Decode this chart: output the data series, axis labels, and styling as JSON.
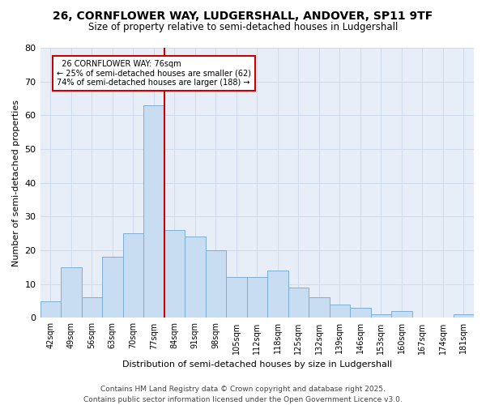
{
  "title": "26, CORNFLOWER WAY, LUDGERSHALL, ANDOVER, SP11 9TF",
  "subtitle": "Size of property relative to semi-detached houses in Ludgershall",
  "xlabel": "Distribution of semi-detached houses by size in Ludgershall",
  "ylabel": "Number of semi-detached properties",
  "categories": [
    "42sqm",
    "49sqm",
    "56sqm",
    "63sqm",
    "70sqm",
    "77sqm",
    "84sqm",
    "91sqm",
    "98sqm",
    "105sqm",
    "112sqm",
    "118sqm",
    "125sqm",
    "132sqm",
    "139sqm",
    "146sqm",
    "153sqm",
    "160sqm",
    "167sqm",
    "174sqm",
    "181sqm"
  ],
  "values": [
    5,
    15,
    6,
    18,
    25,
    63,
    26,
    24,
    20,
    12,
    12,
    14,
    9,
    6,
    4,
    3,
    1,
    2,
    0,
    0,
    1
  ],
  "bar_color": "#c9ddf2",
  "bar_edge_color": "#7bafd4",
  "subject_line_index": 5,
  "subject_label": "26 CORNFLOWER WAY: 76sqm",
  "pct_smaller": 25,
  "n_smaller": 62,
  "pct_larger": 74,
  "n_larger": 188,
  "annotation_box_color": "#ffffff",
  "annotation_box_edge": "#cc0000",
  "subject_line_color": "#cc0000",
  "grid_color": "#d0dcee",
  "background_color": "#e8eef8",
  "fig_background": "#ffffff",
  "ylim": [
    0,
    80
  ],
  "yticks": [
    0,
    10,
    20,
    30,
    40,
    50,
    60,
    70,
    80
  ],
  "footer": "Contains HM Land Registry data © Crown copyright and database right 2025.\nContains public sector information licensed under the Open Government Licence v3.0."
}
